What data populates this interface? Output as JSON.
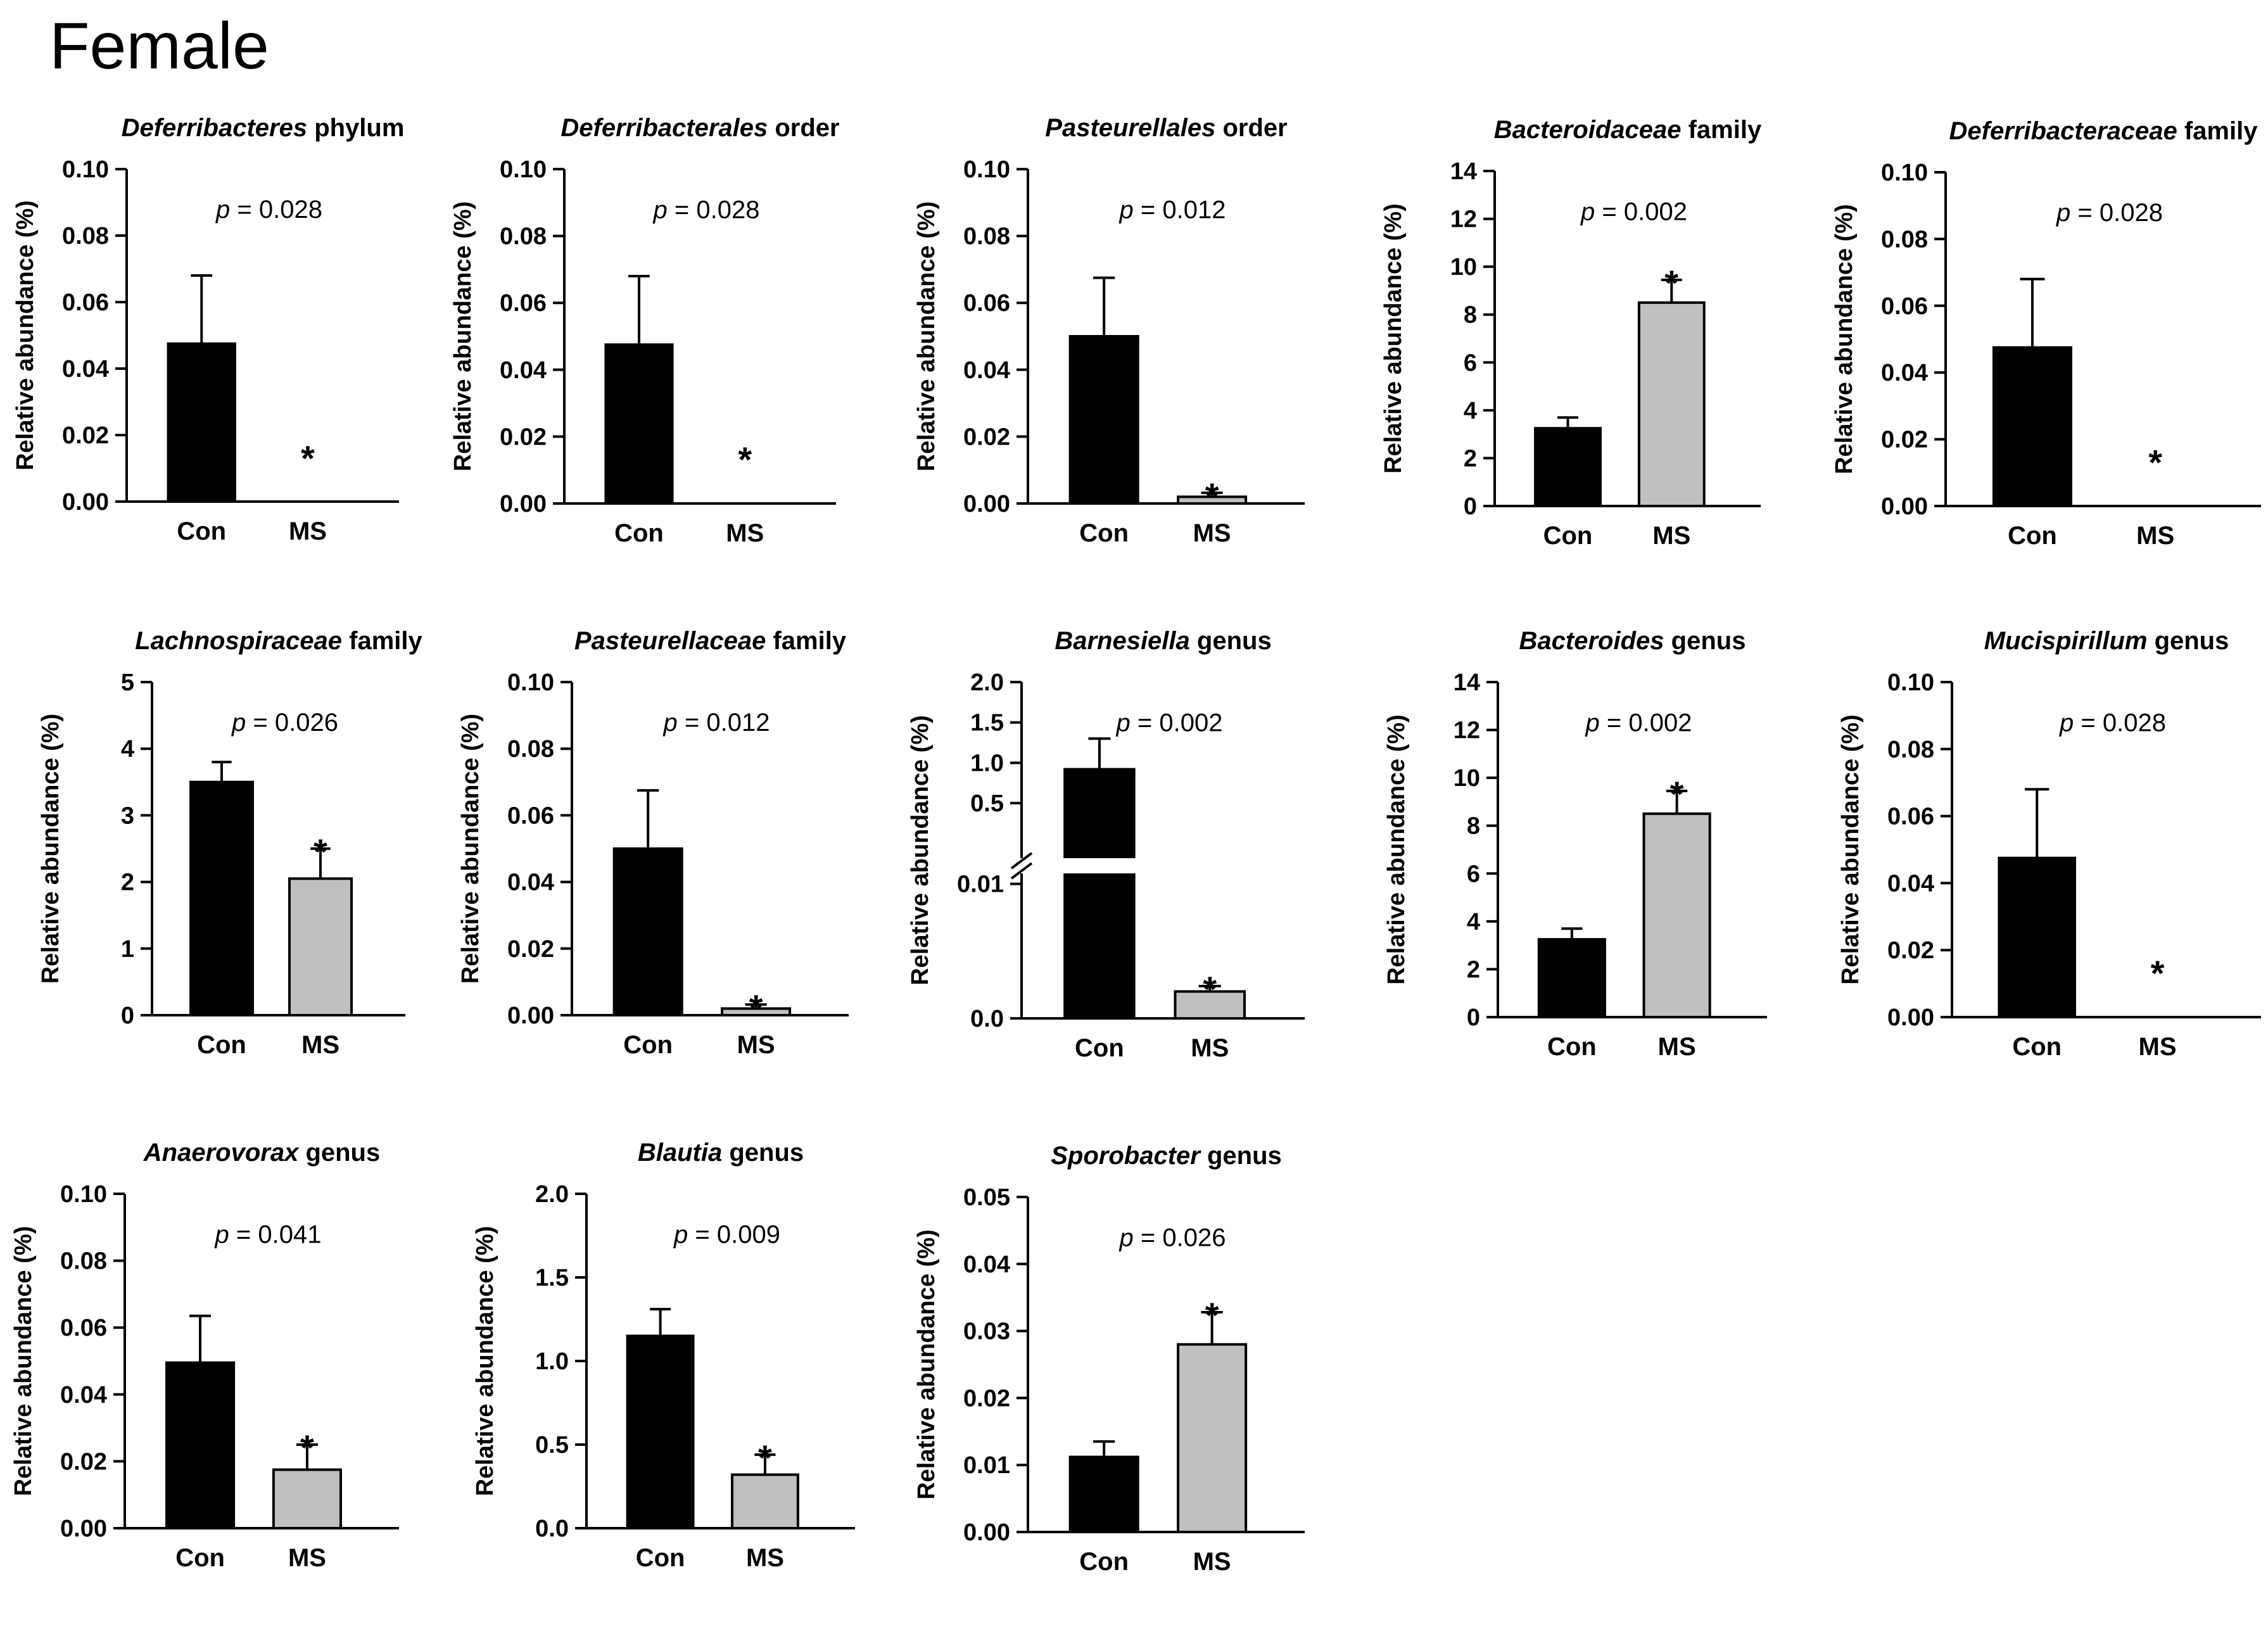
{
  "figure_title": "Female",
  "colors": {
    "con": "#000000",
    "ms": "#c0c0c0",
    "axis": "#000000",
    "break_gap": "#ffffff"
  },
  "chart_data": [
    {
      "type": "bar",
      "title_italic": "Deferribacteres",
      "title_rest": " phylum",
      "ylabel": "Relative abundance (%)",
      "categories": [
        "Con",
        "MS"
      ],
      "values": [
        0.0475,
        0.0
      ],
      "errors": [
        0.0205,
        0.0
      ],
      "ylim": [
        0,
        0.1
      ],
      "yticks": [
        0,
        0.02,
        0.04,
        0.06,
        0.08,
        0.1
      ],
      "ytick_labels": [
        "0.00",
        "0.02",
        "0.04",
        "0.06",
        "0.08",
        "0.10"
      ],
      "p_label": "p",
      "p_text": " = 0.028",
      "significant": [
        false,
        true
      ],
      "star": "*"
    },
    {
      "type": "bar",
      "title_italic": "Deferribacterales",
      "title_rest": " order",
      "ylabel": "Relative abundance (%)",
      "categories": [
        "Con",
        "MS"
      ],
      "values": [
        0.0475,
        0.0
      ],
      "errors": [
        0.0205,
        0.0
      ],
      "ylim": [
        0,
        0.1
      ],
      "yticks": [
        0,
        0.02,
        0.04,
        0.06,
        0.08,
        0.1
      ],
      "ytick_labels": [
        "0.00",
        "0.02",
        "0.04",
        "0.06",
        "0.08",
        "0.10"
      ],
      "p_label": "p",
      "p_text": " = 0.028",
      "significant": [
        false,
        true
      ],
      "star": "*"
    },
    {
      "type": "bar",
      "title_italic": "Pasteurellales",
      "title_rest": " order",
      "ylabel": "Relative abundance (%)",
      "categories": [
        "Con",
        "MS"
      ],
      "values": [
        0.05,
        0.002
      ],
      "errors": [
        0.0175,
        0.0012
      ],
      "ylim": [
        0,
        0.1
      ],
      "yticks": [
        0,
        0.02,
        0.04,
        0.06,
        0.08,
        0.1
      ],
      "ytick_labels": [
        "0.00",
        "0.02",
        "0.04",
        "0.06",
        "0.08",
        "0.10"
      ],
      "p_label": "p",
      "p_text": " = 0.012",
      "significant": [
        false,
        true
      ],
      "star": "*"
    },
    {
      "type": "bar",
      "title_italic": "Bacteroidaceae",
      "title_rest": " family",
      "ylabel": "Relative abundance (%)",
      "categories": [
        "Con",
        "MS"
      ],
      "values": [
        3.25,
        8.5
      ],
      "errors": [
        0.45,
        0.95
      ],
      "ylim": [
        0,
        14
      ],
      "yticks": [
        0,
        2,
        4,
        6,
        8,
        10,
        12,
        14
      ],
      "ytick_labels": [
        "0",
        "2",
        "4",
        "6",
        "8",
        "10",
        "12",
        "14"
      ],
      "p_label": "p",
      "p_text": " = 0.002",
      "significant": [
        false,
        true
      ],
      "star": "*"
    },
    {
      "type": "bar",
      "title_italic": "Deferribacteraceae",
      "title_rest": " family",
      "ylabel": "Relative abundance (%)",
      "categories": [
        "Con",
        "MS"
      ],
      "values": [
        0.0475,
        0.0
      ],
      "errors": [
        0.0205,
        0.0
      ],
      "ylim": [
        0,
        0.1
      ],
      "yticks": [
        0,
        0.02,
        0.04,
        0.06,
        0.08,
        0.1
      ],
      "ytick_labels": [
        "0.00",
        "0.02",
        "0.04",
        "0.06",
        "0.08",
        "0.10"
      ],
      "p_label": "p",
      "p_text": " = 0.028",
      "significant": [
        false,
        true
      ],
      "star": "*"
    },
    {
      "type": "bar",
      "title_italic": "Lachnospiraceae",
      "title_rest": " family",
      "ylabel": "Relative abundance (%)",
      "categories": [
        "Con",
        "MS"
      ],
      "values": [
        3.5,
        2.05
      ],
      "errors": [
        0.3,
        0.45
      ],
      "ylim": [
        0,
        5
      ],
      "yticks": [
        0,
        1,
        2,
        3,
        4,
        5
      ],
      "ytick_labels": [
        "0",
        "1",
        "2",
        "3",
        "4",
        "5"
      ],
      "p_label": "p",
      "p_text": " = 0.026",
      "significant": [
        false,
        true
      ],
      "star": "*"
    },
    {
      "type": "bar",
      "title_italic": "Pasteurellaceae",
      "title_rest": " family",
      "ylabel": "Relative abundance (%)",
      "categories": [
        "Con",
        "MS"
      ],
      "values": [
        0.05,
        0.002
      ],
      "errors": [
        0.0175,
        0.0012
      ],
      "ylim": [
        0,
        0.1
      ],
      "yticks": [
        0,
        0.02,
        0.04,
        0.06,
        0.08,
        0.1
      ],
      "ytick_labels": [
        "0.00",
        "0.02",
        "0.04",
        "0.06",
        "0.08",
        "0.10"
      ],
      "p_label": "p",
      "p_text": " = 0.012",
      "significant": [
        false,
        true
      ],
      "star": "*"
    },
    {
      "type": "bar",
      "title_italic": "Barnesiella",
      "title_rest": " genus",
      "ylabel": "Relative abundance (%)",
      "categories": [
        "Con",
        "MS"
      ],
      "values": [
        0.92,
        0.002
      ],
      "errors": [
        0.38,
        0.0004
      ],
      "axis_break": {
        "lower_range": [
          0,
          0.01
        ],
        "upper_range": [
          0,
          2.0
        ],
        "lower_fraction": 0.4,
        "upper_start_fraction": 0.52,
        "break_value_fraction": 0.45
      },
      "ylim": [
        0,
        2.0
      ],
      "yticks_lower": [
        0,
        0.01
      ],
      "ytick_labels_lower": [
        "0.0",
        "0.01"
      ],
      "yticks_upper": [
        0.5,
        1.0,
        1.5,
        2.0
      ],
      "ytick_labels_upper": [
        "0.5",
        "1.0",
        "1.5",
        "2.0"
      ],
      "p_label": "p",
      "p_text": " = 0.002",
      "significant": [
        false,
        true
      ],
      "star": "*"
    },
    {
      "type": "bar",
      "title_italic": "Bacteroides",
      "title_rest": " genus",
      "ylabel": "Relative abundance (%)",
      "categories": [
        "Con",
        "MS"
      ],
      "values": [
        3.25,
        8.5
      ],
      "errors": [
        0.45,
        0.95
      ],
      "ylim": [
        0,
        14
      ],
      "yticks": [
        0,
        2,
        4,
        6,
        8,
        10,
        12,
        14
      ],
      "ytick_labels": [
        "0",
        "2",
        "4",
        "6",
        "8",
        "10",
        "12",
        "14"
      ],
      "p_label": "p",
      "p_text": " = 0.002",
      "significant": [
        false,
        true
      ],
      "star": "*"
    },
    {
      "type": "bar",
      "title_italic": "Mucispirillum",
      "title_rest": " genus",
      "ylabel": "Relative abundance (%)",
      "categories": [
        "Con",
        "MS"
      ],
      "values": [
        0.0475,
        0.0
      ],
      "errors": [
        0.0205,
        0.0
      ],
      "ylim": [
        0,
        0.1
      ],
      "yticks": [
        0,
        0.02,
        0.04,
        0.06,
        0.08,
        0.1
      ],
      "ytick_labels": [
        "0.00",
        "0.02",
        "0.04",
        "0.06",
        "0.08",
        "0.10"
      ],
      "p_label": "p",
      "p_text": " = 0.028",
      "significant": [
        false,
        true
      ],
      "star": "*"
    },
    {
      "type": "bar",
      "title_italic": "Anaerovorax",
      "title_rest": " genus",
      "ylabel": "Relative abundance (%)",
      "categories": [
        "Con",
        "MS"
      ],
      "values": [
        0.0495,
        0.0175
      ],
      "errors": [
        0.014,
        0.0075
      ],
      "ylim": [
        0,
        0.1
      ],
      "yticks": [
        0,
        0.02,
        0.04,
        0.06,
        0.08,
        0.1
      ],
      "ytick_labels": [
        "0.00",
        "0.02",
        "0.04",
        "0.06",
        "0.08",
        "0.10"
      ],
      "p_label": "p",
      "p_text": " = 0.041",
      "significant": [
        false,
        true
      ],
      "star": "*"
    },
    {
      "type": "bar",
      "title_italic": "Blautia",
      "title_rest": " genus",
      "ylabel": "Relative abundance (%)",
      "categories": [
        "Con",
        "MS"
      ],
      "values": [
        1.15,
        0.32
      ],
      "errors": [
        0.16,
        0.12
      ],
      "ylim": [
        0,
        2.0
      ],
      "yticks": [
        0,
        0.5,
        1.0,
        1.5,
        2.0
      ],
      "ytick_labels": [
        "0.0",
        "0.5",
        "1.0",
        "1.5",
        "2.0"
      ],
      "p_label": "p",
      "p_text": " = 0.009",
      "significant": [
        false,
        true
      ],
      "star": "*"
    },
    {
      "type": "bar",
      "title_italic": "Sporobacter",
      "title_rest": " genus",
      "ylabel": "Relative abundance (%)",
      "categories": [
        "Con",
        "MS"
      ],
      "values": [
        0.0112,
        0.028
      ],
      "errors": [
        0.0023,
        0.0048
      ],
      "ylim": [
        0,
        0.05
      ],
      "yticks": [
        0,
        0.01,
        0.02,
        0.03,
        0.04,
        0.05
      ],
      "ytick_labels": [
        "0.00",
        "0.01",
        "0.02",
        "0.03",
        "0.04",
        "0.05"
      ],
      "p_label": "p",
      "p_text": " = 0.026",
      "significant": [
        false,
        true
      ],
      "star": "*"
    }
  ]
}
